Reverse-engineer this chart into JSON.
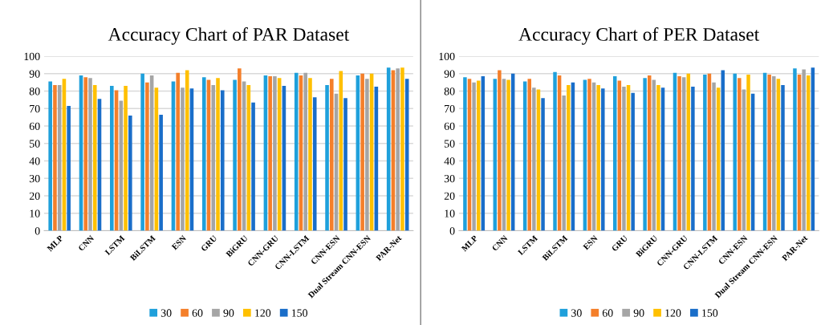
{
  "chart_data": [
    {
      "type": "bar",
      "title": "Accuracy Chart of PAR Dataset",
      "categories": [
        "MLP",
        "CNN",
        "LSTM",
        "BiLSTM",
        "ESN",
        "GRU",
        "BiGRU",
        "CNN-GRU",
        "CNN-LSTM",
        "CNN-ESN",
        "Dual Stream CNN-ESN",
        "PAR-Net"
      ],
      "ylim": [
        0,
        100
      ],
      "yticks": [
        0,
        10,
        20,
        30,
        40,
        50,
        60,
        70,
        80,
        90,
        100
      ],
      "grid": "y",
      "legend": "bottom",
      "series": [
        {
          "name": "30",
          "color": "#1fa0db",
          "values": [
            85.5,
            89,
            83,
            90,
            85.5,
            88,
            86.5,
            89,
            90.5,
            83.5,
            89,
            93.5
          ]
        },
        {
          "name": "60",
          "color": "#f47f2a",
          "values": [
            83.5,
            88,
            80.5,
            85,
            90.5,
            86.5,
            93,
            88.5,
            89,
            87,
            90,
            92
          ]
        },
        {
          "name": "90",
          "color": "#a5a5a5",
          "values": [
            83.5,
            87.5,
            74.5,
            89,
            82,
            83.5,
            85.5,
            88.5,
            90.5,
            78.5,
            87,
            93
          ]
        },
        {
          "name": "120",
          "color": "#ffc000",
          "values": [
            87,
            83.5,
            83,
            82,
            92,
            87.5,
            83.5,
            87.5,
            87.5,
            91.5,
            90,
            93.5
          ]
        },
        {
          "name": "150",
          "color": "#1a6ec9",
          "values": [
            71.5,
            75.5,
            66,
            66.5,
            81.5,
            80.5,
            73.5,
            83,
            76.5,
            76,
            82.5,
            87
          ]
        }
      ]
    },
    {
      "type": "bar",
      "title": "Accuracy Chart of PER Dataset",
      "categories": [
        "MLP",
        "CNN",
        "LSTM",
        "BiLSTM",
        "ESN",
        "GRU",
        "BiGRU",
        "CNN-GRU",
        "CNN-LSTM",
        "CNN-ESN",
        "Dual Stream CNN-ESN",
        "PAR-Net"
      ],
      "ylim": [
        0,
        100
      ],
      "yticks": [
        0,
        10,
        20,
        30,
        40,
        50,
        60,
        70,
        80,
        90,
        100
      ],
      "grid": "y",
      "legend": "bottom",
      "series": [
        {
          "name": "30",
          "color": "#1fa0db",
          "values": [
            88,
            87,
            85.5,
            91,
            86.5,
            88.5,
            87.5,
            90.5,
            89.5,
            90,
            90.5,
            93
          ]
        },
        {
          "name": "60",
          "color": "#f47f2a",
          "values": [
            87,
            92,
            87,
            89,
            87,
            86,
            89,
            88.5,
            90,
            87.5,
            89.5,
            89.5
          ]
        },
        {
          "name": "90",
          "color": "#a5a5a5",
          "values": [
            85,
            87,
            82,
            77.5,
            85,
            82.5,
            86.5,
            88,
            85,
            81,
            88.5,
            92.5
          ]
        },
        {
          "name": "120",
          "color": "#ffc000",
          "values": [
            86,
            86.5,
            81,
            83.5,
            83.5,
            83.5,
            83.5,
            90,
            82,
            89.5,
            87,
            89
          ]
        },
        {
          "name": "150",
          "color": "#1a6ec9",
          "values": [
            88.5,
            90,
            76,
            85,
            81.5,
            79,
            82,
            82.5,
            92,
            78.5,
            83.5,
            93.5
          ]
        }
      ]
    }
  ]
}
